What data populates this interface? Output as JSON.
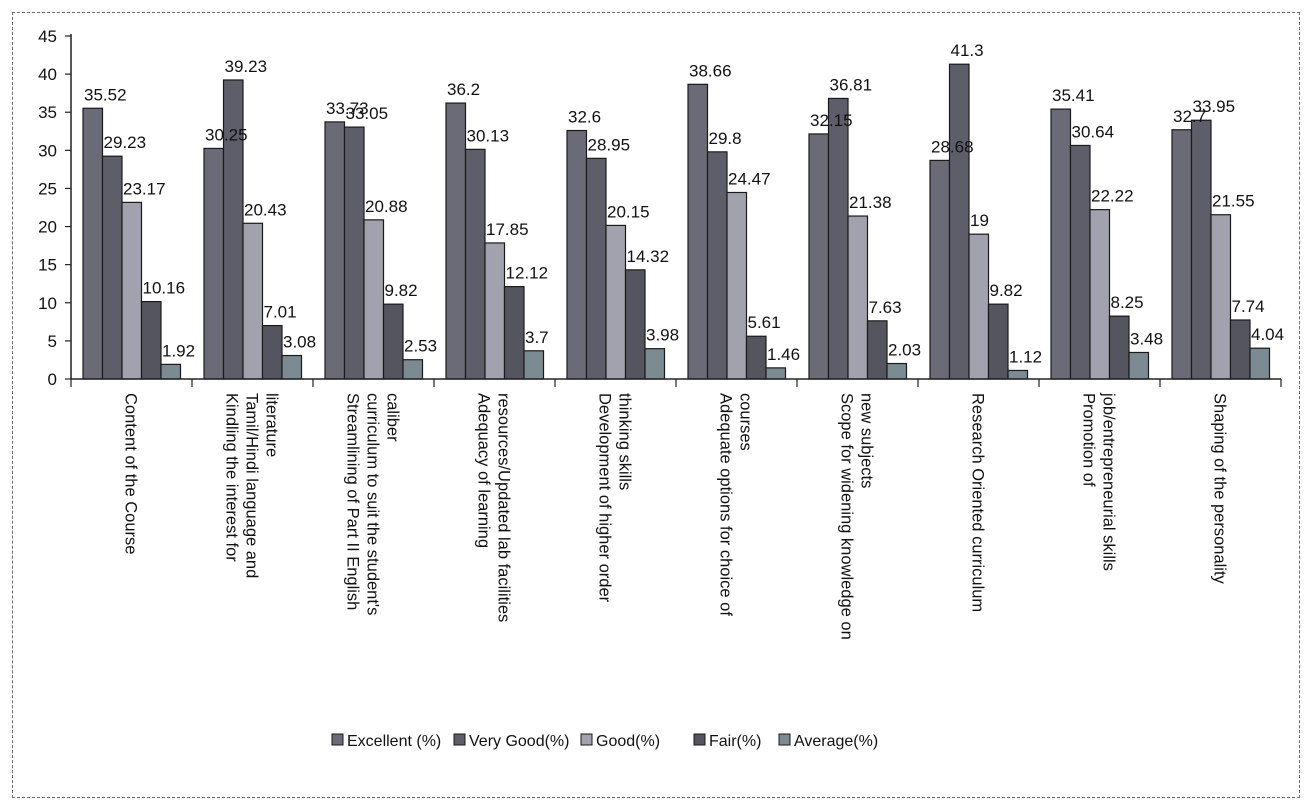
{
  "chart_data": {
    "type": "bar",
    "categories": [
      "Content of the Course",
      "Kindling the interest for Tamil/Hindi language and literature",
      "Streamlining of Part II English curriculum to suit the student's caliber",
      "Adequacy of learning resources/Updated lab facilities",
      "Development of higher order thinking skills",
      "Adequate options for choice of courses",
      "Scope for widening knowledge on new subjects",
      "Research Oriented curriculum",
      "Promotion of job/entrepreneurial skills",
      "Shaping of the personality"
    ],
    "category_lines": [
      [
        "Content of the Course"
      ],
      [
        "Kindling the interest for",
        "Tamil/Hindi language and",
        "literature"
      ],
      [
        "Streamlining of Part II English",
        "curriculum to suit the student's",
        "caliber"
      ],
      [
        "Adequacy of learning",
        "resources/Updated lab facilities"
      ],
      [
        "Development of higher order",
        "thinking skills"
      ],
      [
        "Adequate options for choice of",
        "courses"
      ],
      [
        "Scope for widening knowledge on",
        "new subjects"
      ],
      [
        "Research Oriented curriculum"
      ],
      [
        "Promotion  of",
        "job/entrepreneurial skills"
      ],
      [
        "Shaping of the personality"
      ]
    ],
    "series": [
      {
        "name": "Excellent (%)",
        "values": [
          35.52,
          30.25,
          33.73,
          36.2,
          32.6,
          38.66,
          32.15,
          28.68,
          35.41,
          32.7
        ],
        "labels": [
          "35.52",
          "30.25",
          "33.73",
          "36.2",
          "32.6",
          "38.66",
          "32.15",
          "28.68",
          "35.41",
          "32.7"
        ]
      },
      {
        "name": "Very Good(%)",
        "values": [
          29.23,
          39.23,
          33.05,
          30.13,
          28.95,
          29.8,
          36.81,
          41.3,
          30.64,
          33.95
        ],
        "labels": [
          "29.23",
          "39.23",
          "33.05",
          "30.13",
          "28.95",
          "29.8",
          "36.81",
          "41.3",
          "30.64",
          "33.95"
        ]
      },
      {
        "name": "Good(%)",
        "values": [
          23.17,
          20.43,
          20.88,
          17.85,
          20.15,
          24.47,
          21.38,
          19,
          22.22,
          21.55
        ],
        "labels": [
          "23.17",
          "20.43",
          "20.88",
          "17.85",
          "20.15",
          "24.47",
          "21.38",
          "19",
          "22.22",
          "21.55"
        ]
      },
      {
        "name": "Fair(%)",
        "values": [
          10.16,
          7.01,
          9.82,
          12.12,
          14.32,
          5.61,
          7.63,
          9.82,
          8.25,
          7.74
        ],
        "labels": [
          "10.16",
          "7.01",
          "9.82",
          "12.12",
          "14.32",
          "5.61",
          "7.63",
          "9.82",
          "8.25",
          "7.74"
        ]
      },
      {
        "name": "Average(%)",
        "values": [
          1.92,
          3.08,
          2.53,
          3.7,
          3.98,
          1.46,
          2.03,
          1.12,
          3.48,
          4.04
        ],
        "labels": [
          "1.92",
          "3.08",
          "2.53",
          "3.7",
          "3.98",
          "1.46",
          "2.03",
          "1.12",
          "3.48",
          "4.04"
        ]
      }
    ],
    "ylim": [
      0,
      45
    ],
    "yticks": [
      "0",
      "5",
      "10",
      "15",
      "20",
      "25",
      "30",
      "35",
      "40",
      "45"
    ],
    "legend_position": "bottom",
    "grid": false,
    "colors": [
      "#6b6b78",
      "#5e5e6a",
      "#a2a2ae",
      "#55555f",
      "#7c8a92"
    ]
  }
}
